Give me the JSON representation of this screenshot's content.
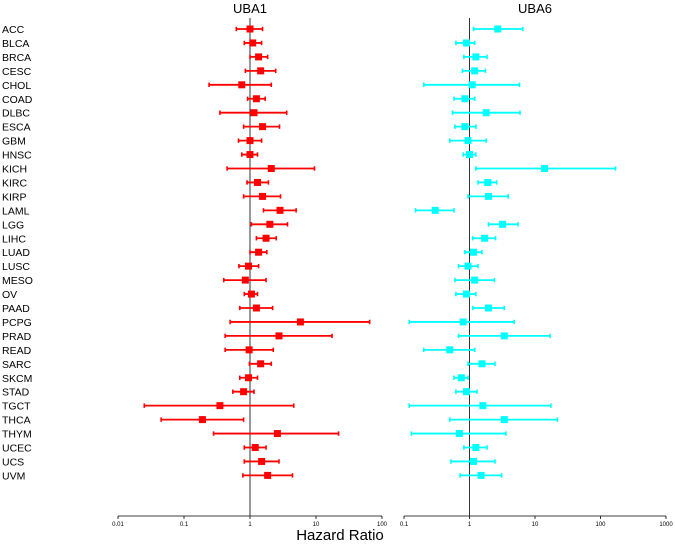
{
  "chart_data": {
    "type": "forest",
    "xlabel": "Hazard Ratio",
    "xscale": "log",
    "reference_line": 1,
    "categories": [
      "ACC",
      "BLCA",
      "BRCA",
      "CESC",
      "CHOL",
      "COAD",
      "DLBC",
      "ESCA",
      "GBM",
      "HNSC",
      "KICH",
      "KIRC",
      "KIRP",
      "LAML",
      "LGG",
      "LIHC",
      "LUAD",
      "LUSC",
      "MESO",
      "OV",
      "PAAD",
      "PCPG",
      "PRAD",
      "READ",
      "SARC",
      "SKCM",
      "STAD",
      "TGCT",
      "THCA",
      "THYM",
      "UCEC",
      "UCS",
      "UVM"
    ],
    "panels": [
      {
        "name": "UBA1",
        "color": "#ff0000",
        "xlim": [
          0.01,
          100
        ],
        "ticks": [
          "0.01",
          "0.1",
          "1",
          "10",
          "100"
        ],
        "hr": [
          1.0,
          1.1,
          1.35,
          1.45,
          0.75,
          1.25,
          1.15,
          1.55,
          1.0,
          1.0,
          2.1,
          1.3,
          1.55,
          2.85,
          2.0,
          1.75,
          1.35,
          0.95,
          0.85,
          1.05,
          1.25,
          5.8,
          2.75,
          0.97,
          1.45,
          0.95,
          0.8,
          0.35,
          0.19,
          2.6,
          1.2,
          1.5,
          1.85
        ],
        "low": [
          0.62,
          0.82,
          1.0,
          0.85,
          0.24,
          0.92,
          0.35,
          0.8,
          0.67,
          0.75,
          0.45,
          0.9,
          0.8,
          1.6,
          1.05,
          1.25,
          1.0,
          0.68,
          0.4,
          0.82,
          0.7,
          0.5,
          0.42,
          0.42,
          0.98,
          0.7,
          0.55,
          0.025,
          0.045,
          0.28,
          0.82,
          0.82,
          0.78
        ],
        "high": [
          1.55,
          1.5,
          1.85,
          2.45,
          2.1,
          1.7,
          3.6,
          2.8,
          1.5,
          1.3,
          9.5,
          1.9,
          2.9,
          5.0,
          3.7,
          2.5,
          1.8,
          1.35,
          1.75,
          1.3,
          2.2,
          65.0,
          17.5,
          2.25,
          2.1,
          1.3,
          1.15,
          4.6,
          0.8,
          22.0,
          1.75,
          2.75,
          4.4
        ]
      },
      {
        "name": "UBA6",
        "color": "#00ffff",
        "xlim": [
          0.1,
          1000
        ],
        "ticks": [
          "0.1",
          "1",
          "10",
          "100",
          "1000"
        ],
        "hr": [
          2.7,
          0.9,
          1.25,
          1.2,
          1.1,
          0.85,
          1.8,
          0.85,
          0.95,
          1.0,
          14.0,
          1.9,
          1.95,
          0.3,
          3.2,
          1.7,
          1.15,
          0.95,
          1.2,
          0.9,
          1.95,
          0.8,
          3.4,
          0.5,
          1.55,
          0.75,
          0.9,
          1.6,
          3.4,
          0.7,
          1.25,
          1.15,
          1.5
        ],
        "low": [
          1.15,
          0.62,
          0.82,
          0.78,
          0.2,
          0.58,
          0.55,
          0.6,
          0.5,
          0.8,
          1.25,
          1.35,
          0.95,
          0.15,
          1.95,
          1.12,
          0.85,
          0.68,
          0.6,
          0.62,
          1.12,
          0.12,
          0.68,
          0.2,
          0.95,
          0.58,
          0.62,
          0.12,
          0.5,
          0.13,
          0.82,
          0.52,
          0.72
        ],
        "high": [
          6.5,
          1.2,
          1.85,
          1.75,
          5.8,
          1.2,
          5.9,
          1.25,
          1.8,
          1.25,
          170.0,
          2.6,
          3.9,
          0.58,
          5.5,
          2.5,
          1.55,
          1.35,
          2.4,
          1.25,
          3.4,
          4.8,
          17.0,
          1.2,
          2.45,
          0.95,
          1.3,
          17.5,
          22.0,
          3.6,
          1.85,
          2.45,
          3.1
        ]
      }
    ]
  }
}
